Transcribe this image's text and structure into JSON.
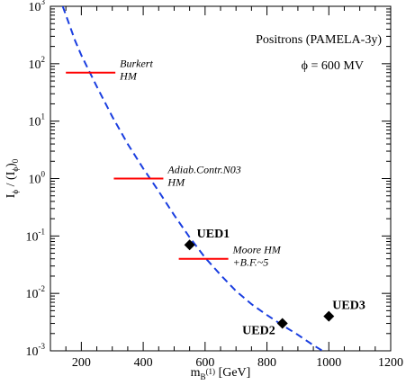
{
  "chart_data": {
    "type": "scatter",
    "title": "Positrons (PAMELA-3y)",
    "subtitle": "ϕ = 600 MV",
    "xlabel": "m_{B^(1)} [GeV]",
    "ylabel": "I_ϕ / (I_ϕ)_0",
    "xlim": [
      100,
      1200
    ],
    "ylim_log10": [
      -3,
      3
    ],
    "yscale": "log",
    "grid": false,
    "x_ticks": [
      "200",
      "400",
      "600",
      "800",
      "1000",
      "1200"
    ],
    "y_ticks_exponents": [
      "-3",
      "-2",
      "-1",
      "0",
      "1",
      "2",
      "3"
    ],
    "y_tick_base": "10",
    "curve": {
      "style": "dashed",
      "color": "#1a3ee0",
      "x": [
        140,
        160,
        180,
        200,
        250,
        300,
        350,
        400,
        450,
        500,
        550,
        600,
        650,
        700,
        750,
        800,
        850,
        900,
        950,
        980
      ],
      "y": [
        1000,
        500,
        250,
        140,
        40,
        12,
        4,
        1.5,
        0.6,
        0.23,
        0.095,
        0.042,
        0.021,
        0.011,
        0.0065,
        0.0042,
        0.0028,
        0.0019,
        0.00125,
        0.001
      ]
    },
    "bands": [
      {
        "label_lines": [
          "Burkert",
          "HM"
        ],
        "x_range": [
          150,
          310
        ],
        "y": 70,
        "color": "#ff0000"
      },
      {
        "label_lines": [
          "Adiab.Contr.N03",
          "HM"
        ],
        "x_range": [
          305,
          465
        ],
        "y": 1.0,
        "color": "#ff0000"
      },
      {
        "label_lines": [
          "Moore HM",
          "+B.F.~5"
        ],
        "x_range": [
          515,
          675
        ],
        "y": 0.04,
        "color": "#ff0000"
      }
    ],
    "points": [
      {
        "label": "UED1",
        "x": 550,
        "y": 0.07
      },
      {
        "label": "UED2",
        "x": 850,
        "y": 0.003
      },
      {
        "label": "UED3",
        "x": 1000,
        "y": 0.004
      }
    ],
    "marker": "diamond",
    "marker_color": "#000000"
  }
}
